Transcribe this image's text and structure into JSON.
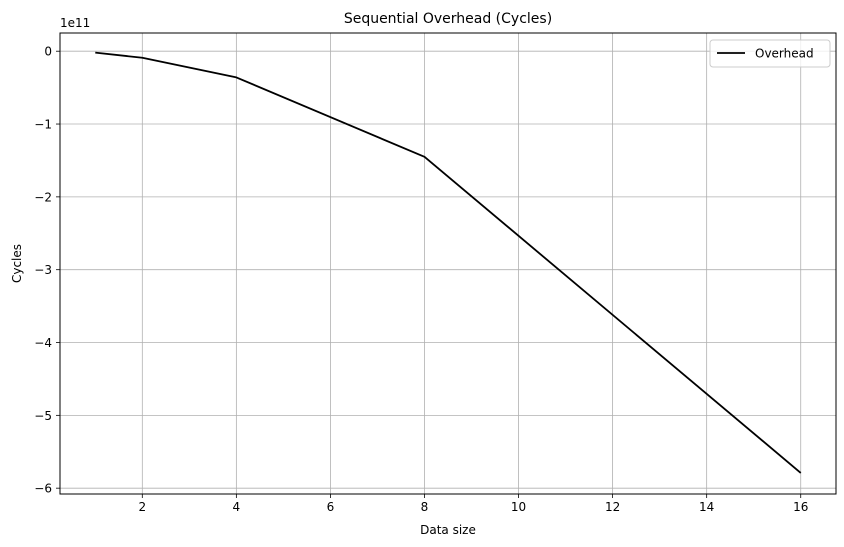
{
  "chart_data": {
    "type": "line",
    "title": "Sequential Overhead (Cycles)",
    "xlabel": "Data size",
    "ylabel": "Cycles",
    "y_offset_label": "1e11",
    "y_scale_factor": 100000000000,
    "xlim": [
      0.25,
      16.75
    ],
    "ylim": [
      -6.08,
      0.25
    ],
    "xticks": [
      2,
      4,
      6,
      8,
      10,
      12,
      14,
      16
    ],
    "yticks": [
      0,
      -1,
      -2,
      -3,
      -4,
      -5,
      -6
    ],
    "ytick_labels": [
      "0",
      "−1",
      "−2",
      "−3",
      "−4",
      "−5",
      "−6"
    ],
    "grid": true,
    "legend_position": "top-right",
    "series": [
      {
        "name": "Overhead",
        "color": "#000000",
        "x": [
          1,
          2,
          4,
          8,
          16
        ],
        "y": [
          -0.02,
          -0.09,
          -0.36,
          -1.45,
          -5.79
        ]
      }
    ]
  }
}
